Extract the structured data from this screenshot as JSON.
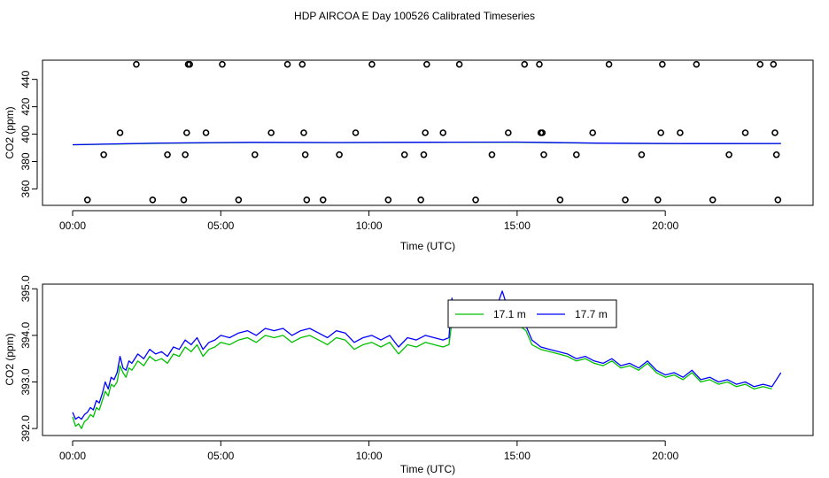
{
  "title": "HDP AIRCOA E  Day 100526  Calibrated Timeseries",
  "chart_data": [
    {
      "type": "scatter",
      "xlabel": "Time (UTC)",
      "ylabel": "CO2 (ppm)",
      "xlim": [
        0,
        24
      ],
      "ylim": [
        348,
        454
      ],
      "x_ticks": [
        0,
        5,
        10,
        15,
        20
      ],
      "x_tick_labels": [
        "00:00",
        "05:00",
        "10:00",
        "15:00",
        "20:00"
      ],
      "y_ticks": [
        360,
        380,
        400,
        420,
        440
      ],
      "y_tick_labels": [
        "360",
        "380",
        "400",
        "420",
        "440"
      ],
      "colors": {
        "series_a": "#00c000",
        "series_b": "#0000ff",
        "points": "#000000"
      },
      "points": {
        "x": [
          0.5,
          1.05,
          1.6,
          2.15,
          2.7,
          3.2,
          3.75,
          3.8,
          3.85,
          3.9,
          3.95,
          4.5,
          5.05,
          5.6,
          6.15,
          6.7,
          7.25,
          7.75,
          7.8,
          7.85,
          7.9,
          8.45,
          9.0,
          9.55,
          10.1,
          10.65,
          11.2,
          11.75,
          11.85,
          11.9,
          11.95,
          12.5,
          13.05,
          13.6,
          14.15,
          14.7,
          15.25,
          15.75,
          15.8,
          15.85,
          15.9,
          16.45,
          17.0,
          17.55,
          18.1,
          18.65,
          19.2,
          19.75,
          19.85,
          19.9,
          20.5,
          21.05,
          21.6,
          22.15,
          22.7,
          23.2,
          23.65,
          23.7,
          23.75,
          23.8
        ],
        "y": [
          352,
          385,
          401,
          451,
          352,
          385,
          352,
          385,
          401,
          451,
          451,
          401,
          451,
          352,
          385,
          401,
          451,
          451,
          401,
          385,
          352,
          352,
          385,
          401,
          451,
          352,
          385,
          352,
          385,
          401,
          451,
          401,
          451,
          352,
          385,
          401,
          451,
          451,
          401,
          401,
          385,
          352,
          385,
          401,
          451,
          352,
          385,
          352,
          401,
          451,
          401,
          451,
          352,
          385,
          401,
          451,
          451,
          401,
          385,
          352
        ]
      },
      "series": [
        {
          "x": [
            0,
            3,
            6,
            9,
            12,
            15,
            18,
            21,
            23.9
          ],
          "values": [
            392.2,
            393.4,
            393.9,
            393.8,
            394.0,
            394.1,
            393.3,
            393.0,
            393.1
          ]
        },
        {
          "x": [
            0,
            3,
            6,
            9,
            12,
            15,
            18,
            21,
            23.9
          ],
          "values": [
            392.3,
            393.5,
            394.0,
            393.9,
            394.1,
            394.2,
            393.4,
            393.1,
            393.2
          ]
        }
      ]
    },
    {
      "type": "line",
      "xlabel": "Time (UTC)",
      "ylabel": "CO2 (ppm)",
      "xlim": [
        0,
        24
      ],
      "ylim": [
        391.85,
        395.1
      ],
      "x_ticks": [
        0,
        5,
        10,
        15,
        20
      ],
      "x_tick_labels": [
        "00:00",
        "05:00",
        "10:00",
        "15:00",
        "20:00"
      ],
      "y_ticks": [
        392.0,
        393.0,
        394.0,
        395.0
      ],
      "y_tick_labels": [
        "392.0",
        "393.0",
        "394.0",
        "395.0"
      ],
      "legend": {
        "placement": "top-center",
        "entries": [
          "17.1 m",
          "17.7 m"
        ]
      },
      "series": [
        {
          "name": "17.1 m",
          "color": "#00c000",
          "x": [
            0.0,
            0.1,
            0.2,
            0.3,
            0.4,
            0.5,
            0.6,
            0.7,
            0.8,
            0.9,
            1.0,
            1.1,
            1.2,
            1.3,
            1.4,
            1.5,
            1.6,
            1.7,
            1.8,
            1.9,
            2.0,
            2.2,
            2.4,
            2.6,
            2.8,
            3.0,
            3.2,
            3.4,
            3.6,
            3.8,
            4.0,
            4.2,
            4.4,
            4.6,
            4.8,
            5.0,
            5.3,
            5.6,
            5.9,
            6.2,
            6.5,
            6.8,
            7.1,
            7.4,
            7.7,
            8.0,
            8.3,
            8.6,
            8.9,
            9.2,
            9.5,
            9.8,
            10.1,
            10.4,
            10.7,
            11.0,
            11.3,
            11.6,
            11.9,
            12.2,
            12.5,
            12.7,
            12.8,
            12.9,
            13.1,
            13.3,
            13.5,
            13.7,
            13.9,
            14.1,
            14.3,
            14.5,
            14.7,
            14.9,
            15.1,
            15.3,
            15.5,
            15.8,
            16.1,
            16.4,
            16.7,
            17.0,
            17.3,
            17.6,
            17.9,
            18.2,
            18.5,
            18.8,
            19.1,
            19.4,
            19.7,
            20.0,
            20.3,
            20.6,
            20.9,
            21.2,
            21.5,
            21.8,
            22.1,
            22.4,
            22.7,
            23.0,
            23.3,
            23.6
          ],
          "values": [
            392.25,
            392.05,
            392.1,
            392.0,
            392.15,
            392.2,
            392.3,
            392.25,
            392.45,
            392.4,
            392.6,
            392.8,
            392.7,
            392.95,
            392.9,
            393.0,
            393.35,
            393.2,
            393.1,
            393.3,
            393.25,
            393.45,
            393.35,
            393.55,
            393.45,
            393.5,
            393.4,
            393.6,
            393.55,
            393.75,
            393.65,
            393.8,
            393.55,
            393.7,
            393.75,
            393.85,
            393.8,
            393.9,
            393.95,
            393.85,
            394.0,
            393.95,
            394.0,
            393.85,
            393.95,
            394.0,
            393.9,
            393.8,
            393.95,
            393.9,
            393.7,
            393.8,
            393.85,
            393.75,
            393.85,
            393.6,
            393.8,
            393.75,
            393.85,
            393.8,
            393.75,
            393.8,
            394.3,
            394.2,
            394.35,
            394.4,
            394.3,
            394.45,
            394.4,
            394.5,
            394.45,
            394.6,
            394.4,
            394.45,
            394.2,
            394.1,
            393.8,
            393.7,
            393.65,
            393.6,
            393.55,
            393.45,
            393.5,
            393.4,
            393.35,
            393.45,
            393.3,
            393.35,
            393.25,
            393.4,
            393.2,
            393.1,
            393.15,
            393.05,
            393.2,
            393.0,
            393.05,
            392.95,
            393.0,
            392.9,
            392.95,
            392.85,
            392.9,
            392.85
          ]
        },
        {
          "name": "17.7 m",
          "color": "#0000ff",
          "x": [
            0.0,
            0.1,
            0.2,
            0.3,
            0.4,
            0.5,
            0.6,
            0.7,
            0.8,
            0.9,
            1.0,
            1.1,
            1.2,
            1.3,
            1.4,
            1.5,
            1.6,
            1.7,
            1.8,
            1.9,
            2.0,
            2.2,
            2.4,
            2.6,
            2.8,
            3.0,
            3.2,
            3.4,
            3.6,
            3.8,
            4.0,
            4.2,
            4.4,
            4.6,
            4.8,
            5.0,
            5.3,
            5.6,
            5.9,
            6.2,
            6.5,
            6.8,
            7.1,
            7.4,
            7.7,
            8.0,
            8.3,
            8.6,
            8.9,
            9.2,
            9.5,
            9.8,
            10.1,
            10.4,
            10.7,
            11.0,
            11.3,
            11.6,
            11.9,
            12.2,
            12.5,
            12.7,
            12.8,
            12.9,
            13.1,
            13.3,
            13.5,
            13.7,
            13.9,
            14.1,
            14.3,
            14.5,
            14.7,
            14.9,
            15.1,
            15.3,
            15.5,
            15.8,
            16.1,
            16.4,
            16.7,
            17.0,
            17.3,
            17.6,
            17.9,
            18.2,
            18.5,
            18.8,
            19.1,
            19.4,
            19.7,
            20.0,
            20.3,
            20.6,
            20.9,
            21.2,
            21.5,
            21.8,
            22.1,
            22.4,
            22.7,
            23.0,
            23.3,
            23.6,
            23.9
          ],
          "values": [
            392.35,
            392.2,
            392.25,
            392.2,
            392.3,
            392.35,
            392.45,
            392.4,
            392.6,
            392.55,
            392.75,
            393.0,
            392.85,
            393.1,
            393.05,
            393.2,
            393.55,
            393.3,
            393.25,
            393.45,
            393.4,
            393.6,
            393.5,
            393.7,
            393.6,
            393.65,
            393.55,
            393.75,
            393.7,
            393.9,
            393.8,
            393.95,
            393.7,
            393.85,
            393.9,
            394.0,
            393.95,
            394.05,
            394.1,
            394.0,
            394.15,
            394.1,
            394.15,
            394.0,
            394.1,
            394.15,
            394.05,
            393.95,
            394.1,
            394.05,
            393.85,
            393.95,
            394.0,
            393.9,
            394.0,
            393.75,
            393.95,
            393.9,
            394.0,
            393.95,
            393.9,
            393.95,
            394.8,
            394.3,
            394.5,
            394.55,
            394.45,
            394.6,
            394.55,
            394.7,
            394.6,
            394.95,
            394.55,
            394.6,
            394.3,
            394.2,
            393.9,
            393.75,
            393.7,
            393.65,
            393.6,
            393.5,
            393.55,
            393.45,
            393.4,
            393.5,
            393.35,
            393.4,
            393.3,
            393.45,
            393.25,
            393.15,
            393.2,
            393.1,
            393.25,
            393.05,
            393.1,
            393.0,
            393.05,
            392.95,
            393.0,
            392.9,
            392.95,
            392.9,
            393.2
          ]
        }
      ]
    }
  ]
}
